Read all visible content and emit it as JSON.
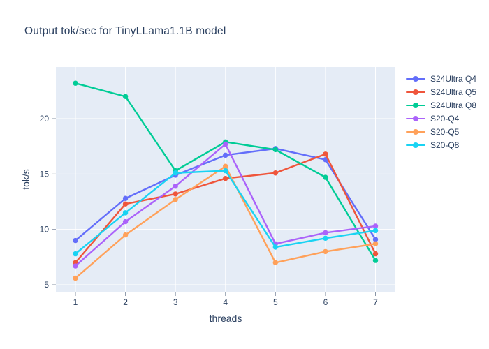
{
  "chart": {
    "title": "Output tok/sec for TinyLLama1.1B model",
    "xlabel": "threads",
    "ylabel": "tok/s"
  },
  "chart_data": {
    "type": "line",
    "title": "Output tok/sec for TinyLLama1.1B model",
    "xlabel": "threads",
    "ylabel": "tok/s",
    "x": [
      1,
      2,
      3,
      4,
      5,
      6,
      7
    ],
    "yticks": [
      5,
      10,
      15,
      20
    ],
    "xlim": [
      0.6,
      7.4
    ],
    "ylim": [
      4.4,
      24.7
    ],
    "grid": true,
    "legend_position": "right",
    "plot_bg_color": "#E5ECF6",
    "grid_color": "#FFFFFF",
    "text_color": "#2a3f5f",
    "mode": "lines+markers",
    "series": [
      {
        "name": "S24Ultra Q4",
        "color": "#636EFA",
        "values": [
          9.0,
          12.8,
          14.9,
          16.7,
          17.3,
          16.3,
          9.1
        ]
      },
      {
        "name": "S24Ultra Q5",
        "color": "#EF553B",
        "values": [
          7.0,
          12.3,
          13.2,
          14.6,
          15.1,
          16.8,
          7.8
        ]
      },
      {
        "name": "S24Ultra Q8",
        "color": "#00CC96",
        "values": [
          23.2,
          22.0,
          15.3,
          17.9,
          17.2,
          14.7,
          7.2
        ]
      },
      {
        "name": "S20-Q4",
        "color": "#AB63FA",
        "values": [
          6.7,
          10.7,
          13.9,
          17.7,
          8.7,
          9.7,
          10.3
        ]
      },
      {
        "name": "S20-Q5",
        "color": "#FFA15A",
        "values": [
          5.6,
          9.5,
          12.7,
          15.7,
          7.0,
          8.0,
          8.7
        ]
      },
      {
        "name": "S20-Q8",
        "color": "#19D3F3",
        "values": [
          7.8,
          11.5,
          15.1,
          15.3,
          8.4,
          9.2,
          9.9
        ]
      }
    ]
  }
}
